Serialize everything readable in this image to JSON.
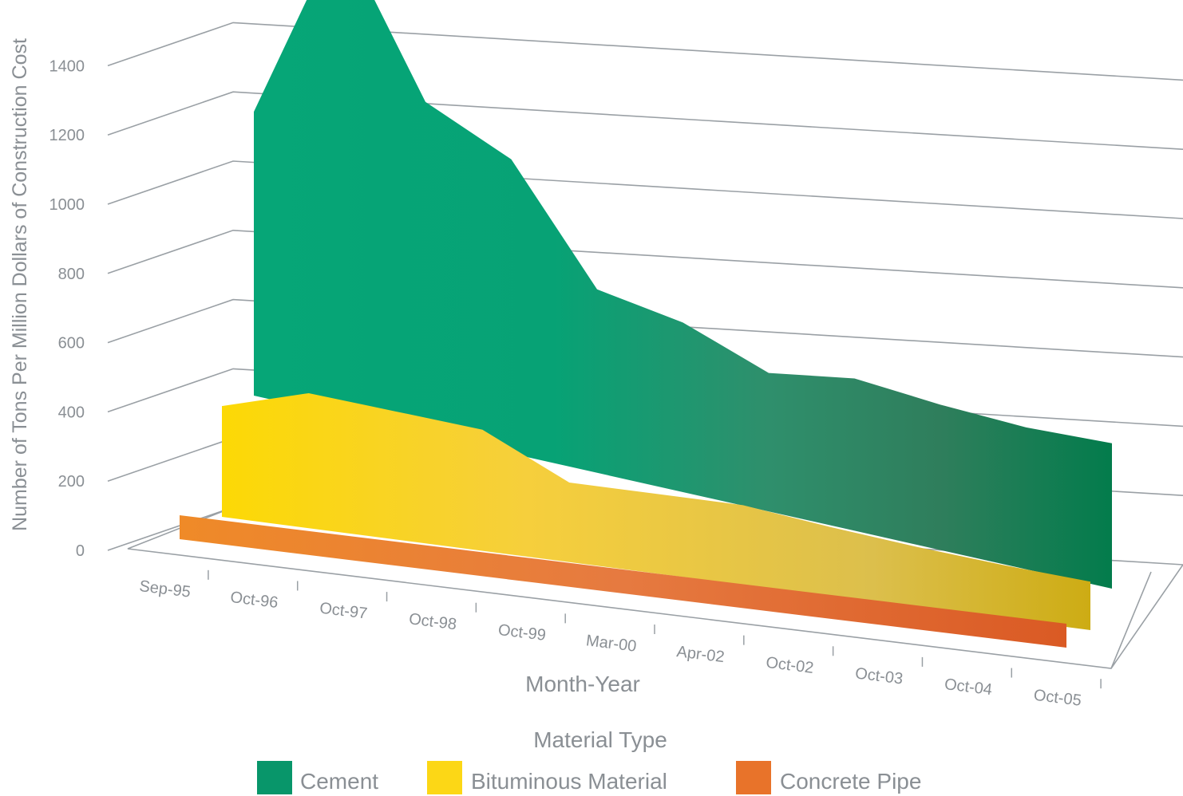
{
  "chart_data": {
    "type": "area",
    "ylabel": "Number of Tons Per Million Dollars of Construction Cost",
    "xlabel": "Month-Year",
    "ylim": [
      0,
      1400
    ],
    "yticks": [
      "0",
      "200",
      "400",
      "600",
      "800",
      "1000",
      "1200",
      "1400"
    ],
    "categories": [
      "Sep-95",
      "Oct-96",
      "Oct-97",
      "Oct-98",
      "Oct-99",
      "Mar-00",
      "Apr-02",
      "Oct-02",
      "Oct-03",
      "Oct-04",
      "Oct-05"
    ],
    "legend_title": "Material Type",
    "legend_position": "bottom",
    "grid": true,
    "series": [
      {
        "name": "Cement",
        "color": "#06a06f",
        "values": [
          820,
          1400,
          960,
          850,
          530,
          490,
          400,
          440,
          420,
          410,
          420
        ]
      },
      {
        "name": "Bituminous Material",
        "color": "#fcd716",
        "values": [
          320,
          390,
          370,
          350,
          230,
          230,
          230,
          200,
          175,
          155,
          140
        ]
      },
      {
        "name": "Concrete Pipe",
        "color": "#e8732a",
        "values": [
          30,
          30,
          30,
          30,
          30,
          30,
          30,
          30,
          30,
          30,
          30
        ]
      }
    ]
  }
}
